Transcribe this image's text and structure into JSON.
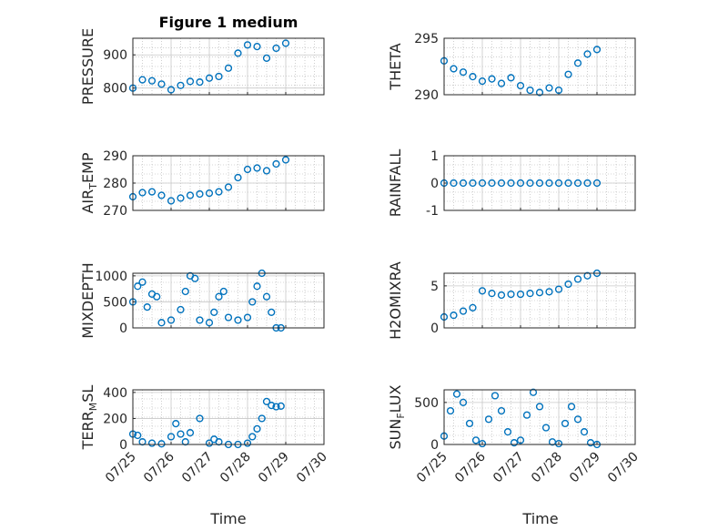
{
  "figure": {
    "title": "Figure 1 medium"
  },
  "chart_data": [
    {
      "type": "scatter",
      "ylabel": "PRESSURE",
      "yticks": [
        "800",
        "900"
      ],
      "ylim": [
        780,
        950
      ],
      "xlim": [
        "07/25",
        "07/30"
      ],
      "x": [
        "07/25 00:00",
        "07/25 06:00",
        "07/25 12:00",
        "07/25 18:00",
        "07/26 00:00",
        "07/26 06:00",
        "07/26 12:00",
        "07/26 18:00",
        "07/27 00:00",
        "07/27 06:00",
        "07/27 12:00",
        "07/27 18:00",
        "07/28 00:00",
        "07/28 06:00",
        "07/28 12:00",
        "07/28 18:00",
        "07/29 00:00"
      ],
      "y": [
        800,
        825,
        822,
        812,
        795,
        808,
        820,
        818,
        830,
        835,
        860,
        905,
        930,
        925,
        890,
        920,
        935
      ]
    },
    {
      "type": "scatter",
      "ylabel": "THETA",
      "yticks": [
        "290",
        "295"
      ],
      "ylim": [
        290,
        295
      ],
      "xlim": [
        "07/25",
        "07/30"
      ],
      "x": [
        "07/25 00:00",
        "07/25 06:00",
        "07/25 12:00",
        "07/25 18:00",
        "07/26 00:00",
        "07/26 06:00",
        "07/26 12:00",
        "07/26 18:00",
        "07/27 00:00",
        "07/27 06:00",
        "07/27 12:00",
        "07/27 18:00",
        "07/28 00:00",
        "07/28 06:00",
        "07/28 12:00",
        "07/28 18:00",
        "07/29 00:00"
      ],
      "y": [
        293.0,
        292.3,
        292.0,
        291.6,
        291.2,
        291.4,
        291.0,
        291.5,
        290.8,
        290.4,
        290.2,
        290.6,
        290.4,
        291.8,
        292.8,
        293.6,
        294.0
      ]
    },
    {
      "type": "scatter",
      "ylabel": "AIR_TEMP",
      "ylabel_main": "AIR",
      "ylabel_sub": "T",
      "ylabel_rest": "EMP",
      "yticks": [
        "270",
        "280",
        "290"
      ],
      "ylim": [
        270,
        290
      ],
      "xlim": [
        "07/25",
        "07/30"
      ],
      "x": [
        "07/25 00:00",
        "07/25 06:00",
        "07/25 12:00",
        "07/25 18:00",
        "07/26 00:00",
        "07/26 06:00",
        "07/26 12:00",
        "07/26 18:00",
        "07/27 00:00",
        "07/27 06:00",
        "07/27 12:00",
        "07/27 18:00",
        "07/28 00:00",
        "07/28 06:00",
        "07/28 12:00",
        "07/28 18:00",
        "07/29 00:00"
      ],
      "y": [
        275.0,
        276.5,
        276.8,
        275.5,
        273.5,
        274.5,
        275.5,
        276.0,
        276.3,
        276.8,
        278.5,
        282.0,
        285.0,
        285.5,
        284.5,
        287.0,
        288.5
      ]
    },
    {
      "type": "scatter",
      "ylabel": "RAINFALL",
      "yticks": [
        "-1",
        "0",
        "1"
      ],
      "ylim": [
        -1,
        1
      ],
      "xlim": [
        "07/25",
        "07/30"
      ],
      "x": [
        "07/25 00:00",
        "07/25 06:00",
        "07/25 12:00",
        "07/25 18:00",
        "07/26 00:00",
        "07/26 06:00",
        "07/26 12:00",
        "07/26 18:00",
        "07/27 00:00",
        "07/27 06:00",
        "07/27 12:00",
        "07/27 18:00",
        "07/28 00:00",
        "07/28 06:00",
        "07/28 12:00",
        "07/28 18:00",
        "07/29 00:00"
      ],
      "y": [
        0,
        0,
        0,
        0,
        0,
        0,
        0,
        0,
        0,
        0,
        0,
        0,
        0,
        0,
        0,
        0,
        0
      ]
    },
    {
      "type": "scatter",
      "ylabel": "MIXDEPTH",
      "yticks": [
        "0",
        "500",
        "1000"
      ],
      "ylim": [
        0,
        1050
      ],
      "xlim": [
        "07/25",
        "07/30"
      ],
      "x": [
        "07/25 00:00",
        "07/25 03:00",
        "07/25 06:00",
        "07/25 09:00",
        "07/25 12:00",
        "07/25 15:00",
        "07/25 18:00",
        "07/26 00:00",
        "07/26 06:00",
        "07/26 09:00",
        "07/26 12:00",
        "07/26 15:00",
        "07/26 18:00",
        "07/27 00:00",
        "07/27 03:00",
        "07/27 06:00",
        "07/27 09:00",
        "07/27 12:00",
        "07/27 18:00",
        "07/28 00:00",
        "07/28 03:00",
        "07/28 06:00",
        "07/28 09:00",
        "07/28 12:00",
        "07/28 15:00",
        "07/28 18:00",
        "07/28 21:00"
      ],
      "y": [
        500,
        800,
        880,
        400,
        650,
        600,
        100,
        150,
        350,
        700,
        1000,
        950,
        150,
        100,
        300,
        600,
        700,
        200,
        150,
        200,
        500,
        800,
        1050,
        600,
        300,
        0,
        0
      ]
    },
    {
      "type": "scatter",
      "ylabel": "H2OMIXRA",
      "yticks": [
        "0",
        "5"
      ],
      "ylim": [
        0,
        6.5
      ],
      "xlim": [
        "07/25",
        "07/30"
      ],
      "x": [
        "07/25 00:00",
        "07/25 06:00",
        "07/25 12:00",
        "07/25 18:00",
        "07/26 00:00",
        "07/26 06:00",
        "07/26 12:00",
        "07/26 18:00",
        "07/27 00:00",
        "07/27 06:00",
        "07/27 12:00",
        "07/27 18:00",
        "07/28 00:00",
        "07/28 06:00",
        "07/28 12:00",
        "07/28 18:00",
        "07/29 00:00"
      ],
      "y": [
        1.3,
        1.5,
        2.0,
        2.4,
        4.4,
        4.1,
        3.9,
        4.0,
        4.0,
        4.1,
        4.2,
        4.3,
        4.6,
        5.2,
        5.8,
        6.2,
        6.5
      ]
    },
    {
      "type": "scatter",
      "ylabel": "TERR_MSL",
      "ylabel_main": "TERR",
      "ylabel_sub": "M",
      "ylabel_rest": "SL",
      "yticks": [
        "0",
        "200",
        "400"
      ],
      "ylim": [
        0,
        420
      ],
      "xlim": [
        "07/25",
        "07/30"
      ],
      "x": [
        "07/25 00:00",
        "07/25 03:00",
        "07/25 06:00",
        "07/25 12:00",
        "07/25 18:00",
        "07/26 00:00",
        "07/26 03:00",
        "07/26 06:00",
        "07/26 09:00",
        "07/26 12:00",
        "07/26 18:00",
        "07/27 00:00",
        "07/27 03:00",
        "07/27 06:00",
        "07/27 12:00",
        "07/27 18:00",
        "07/28 00:00",
        "07/28 03:00",
        "07/28 06:00",
        "07/28 09:00",
        "07/28 12:00",
        "07/28 15:00",
        "07/28 18:00",
        "07/28 21:00"
      ],
      "y": [
        80,
        70,
        20,
        10,
        5,
        60,
        160,
        80,
        20,
        90,
        200,
        10,
        40,
        20,
        0,
        0,
        10,
        60,
        120,
        200,
        330,
        300,
        290,
        295
      ]
    },
    {
      "type": "scatter",
      "ylabel": "SUN_FLUX",
      "ylabel_main": "SUN",
      "ylabel_sub": "F",
      "ylabel_rest": "LUX",
      "yticks": [
        "0",
        "500"
      ],
      "ylim": [
        0,
        650
      ],
      "xlim": [
        "07/25",
        "07/30"
      ],
      "x": [
        "07/25 00:00",
        "07/25 04:00",
        "07/25 08:00",
        "07/25 12:00",
        "07/25 16:00",
        "07/25 20:00",
        "07/26 00:00",
        "07/26 04:00",
        "07/26 08:00",
        "07/26 12:00",
        "07/26 16:00",
        "07/26 20:00",
        "07/27 00:00",
        "07/27 04:00",
        "07/27 08:00",
        "07/27 12:00",
        "07/27 16:00",
        "07/27 20:00",
        "07/28 00:00",
        "07/28 04:00",
        "07/28 08:00",
        "07/28 12:00",
        "07/28 16:00",
        "07/28 20:00",
        "07/29 00:00"
      ],
      "y": [
        100,
        400,
        600,
        500,
        250,
        50,
        10,
        300,
        580,
        400,
        150,
        20,
        50,
        350,
        620,
        450,
        200,
        30,
        10,
        250,
        450,
        300,
        150,
        20,
        0
      ]
    }
  ],
  "xaxis": {
    "ticks": [
      "07/25",
      "07/26",
      "07/27",
      "07/28",
      "07/29",
      "07/30"
    ],
    "label": "Time"
  }
}
